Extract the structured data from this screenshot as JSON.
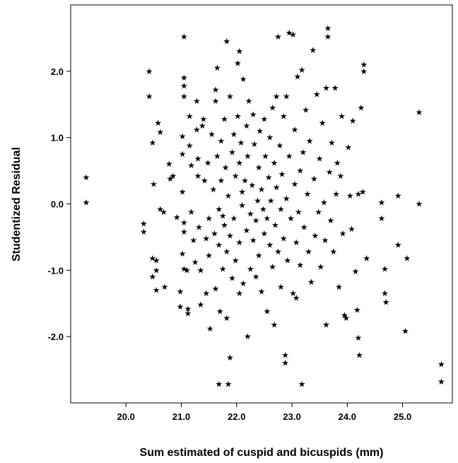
{
  "chart_data": {
    "type": "scatter",
    "xlabel": "Sum estimated of cuspid and bicuspids (mm)",
    "ylabel": "Studentized Residual",
    "xlim": [
      19.0,
      25.9
    ],
    "ylim": [
      -3.0,
      3.0
    ],
    "x_ticks": [
      "20.0",
      "21.0",
      "22.0",
      "23.0",
      "24.0",
      "25.0"
    ],
    "y_ticks": [
      "2.0",
      "1.0",
      "0.0",
      "-1.0",
      "-2.0"
    ],
    "marker": "star",
    "grid": false,
    "series": [
      {
        "points": [
          [
            19.28,
            0.4
          ],
          [
            19.28,
            0.02
          ],
          [
            20.32,
            -0.3
          ],
          [
            20.32,
            -0.42
          ],
          [
            20.42,
            2.0
          ],
          [
            20.42,
            1.62
          ],
          [
            20.48,
            0.92
          ],
          [
            20.5,
            0.3
          ],
          [
            20.48,
            -0.82
          ],
          [
            20.48,
            -1.1
          ],
          [
            20.55,
            -0.85
          ],
          [
            20.55,
            -1.0
          ],
          [
            20.55,
            -1.3
          ],
          [
            20.58,
            1.22
          ],
          [
            20.62,
            1.08
          ],
          [
            20.62,
            -0.08
          ],
          [
            20.68,
            -0.12
          ],
          [
            20.7,
            -1.25
          ],
          [
            20.78,
            0.6
          ],
          [
            20.8,
            0.38
          ],
          [
            20.85,
            0.42
          ],
          [
            20.92,
            -0.2
          ],
          [
            20.98,
            -1.32
          ],
          [
            20.98,
            -1.55
          ],
          [
            21.05,
            2.52
          ],
          [
            21.05,
            1.9
          ],
          [
            21.05,
            1.78
          ],
          [
            21.05,
            1.62
          ],
          [
            21.02,
            1.02
          ],
          [
            21.02,
            0.75
          ],
          [
            21.02,
            0.18
          ],
          [
            21.05,
            -0.28
          ],
          [
            21.05,
            -0.42
          ],
          [
            21.02,
            -0.75
          ],
          [
            21.05,
            -0.98
          ],
          [
            21.1,
            -1.0
          ],
          [
            21.12,
            -1.58
          ],
          [
            21.12,
            -1.65
          ],
          [
            21.15,
            1.32
          ],
          [
            21.15,
            0.88
          ],
          [
            21.18,
            0.58
          ],
          [
            21.18,
            -0.12
          ],
          [
            21.22,
            -0.55
          ],
          [
            21.25,
            -0.88
          ],
          [
            21.28,
            1.55
          ],
          [
            21.28,
            1.12
          ],
          [
            21.3,
            0.68
          ],
          [
            21.3,
            0.42
          ],
          [
            21.32,
            -0.35
          ],
          [
            21.35,
            -1.0
          ],
          [
            21.35,
            -1.52
          ],
          [
            21.38,
            1.18
          ],
          [
            21.4,
            1.28
          ],
          [
            21.42,
            0.35
          ],
          [
            21.45,
            -0.52
          ],
          [
            21.45,
            -1.35
          ],
          [
            21.48,
            0.62
          ],
          [
            21.5,
            -0.22
          ],
          [
            21.5,
            -0.78
          ],
          [
            21.52,
            -1.88
          ],
          [
            21.55,
            1.05
          ],
          [
            21.58,
            0.22
          ],
          [
            21.6,
            -0.45
          ],
          [
            21.62,
            1.72
          ],
          [
            21.62,
            1.55
          ],
          [
            21.62,
            -1.28
          ],
          [
            21.65,
            2.05
          ],
          [
            21.65,
            0.72
          ],
          [
            21.68,
            -0.08
          ],
          [
            21.68,
            -0.62
          ],
          [
            21.68,
            -2.72
          ],
          [
            21.7,
            -1.62
          ],
          [
            21.72,
            0.95
          ],
          [
            21.72,
            0.35
          ],
          [
            21.75,
            -0.18
          ],
          [
            21.75,
            -0.98
          ],
          [
            21.78,
            1.28
          ],
          [
            21.78,
            -0.32
          ],
          [
            21.8,
            0.55
          ],
          [
            21.82,
            2.45
          ],
          [
            21.82,
            -0.72
          ],
          [
            21.82,
            -1.72
          ],
          [
            21.85,
            0.12
          ],
          [
            21.85,
            -2.72
          ],
          [
            21.88,
            1.62
          ],
          [
            21.88,
            -0.48
          ],
          [
            21.88,
            -2.32
          ],
          [
            21.92,
            0.78
          ],
          [
            21.92,
            -1.12
          ],
          [
            21.95,
            1.05
          ],
          [
            21.95,
            -0.22
          ],
          [
            21.98,
            0.42
          ],
          [
            21.98,
            -0.85
          ],
          [
            22.02,
            2.12
          ],
          [
            22.02,
            1.32
          ],
          [
            22.05,
            2.3
          ],
          [
            22.05,
            0.62
          ],
          [
            22.05,
            -0.58
          ],
          [
            22.05,
            -1.35
          ],
          [
            22.08,
            0.92
          ],
          [
            22.1,
            0.18
          ],
          [
            22.1,
            -0.02
          ],
          [
            22.12,
            1.88
          ],
          [
            22.12,
            -1.2
          ],
          [
            22.15,
            0.35
          ],
          [
            22.18,
            1.18
          ],
          [
            22.18,
            -0.4
          ],
          [
            22.2,
            0.72
          ],
          [
            22.2,
            -2.0
          ],
          [
            22.22,
            1.55
          ],
          [
            22.25,
            -0.15
          ],
          [
            22.25,
            -0.98
          ],
          [
            22.28,
            0.28
          ],
          [
            22.3,
            1.35
          ],
          [
            22.3,
            -0.55
          ],
          [
            22.32,
            0.9
          ],
          [
            22.35,
            -1.1
          ],
          [
            22.35,
            -0.25
          ],
          [
            22.38,
            0.05
          ],
          [
            22.4,
            0.55
          ],
          [
            22.4,
            -0.78
          ],
          [
            22.42,
            1.1
          ],
          [
            22.45,
            0.22
          ],
          [
            22.45,
            -1.32
          ],
          [
            22.48,
            -0.08
          ],
          [
            22.5,
            1.28
          ],
          [
            22.5,
            -0.45
          ],
          [
            22.52,
            0.72
          ],
          [
            22.55,
            -0.22
          ],
          [
            22.55,
            -1.62
          ],
          [
            22.58,
            0.4
          ],
          [
            22.6,
            1.0
          ],
          [
            22.6,
            -0.62
          ],
          [
            22.62,
            0.05
          ],
          [
            22.65,
            1.45
          ],
          [
            22.65,
            -0.95
          ],
          [
            22.68,
            0.62
          ],
          [
            22.68,
            -1.82
          ],
          [
            22.7,
            -0.32
          ],
          [
            22.72,
            1.62
          ],
          [
            22.72,
            0.25
          ],
          [
            22.75,
            2.52
          ],
          [
            22.75,
            -0.72
          ],
          [
            22.78,
            0.88
          ],
          [
            22.8,
            -0.08
          ],
          [
            22.8,
            -1.25
          ],
          [
            22.82,
            0.45
          ],
          [
            22.85,
            1.32
          ],
          [
            22.85,
            -0.52
          ],
          [
            22.88,
            -2.28
          ],
          [
            22.88,
            -2.4
          ],
          [
            22.9,
            0.08
          ],
          [
            22.9,
            1.62
          ],
          [
            22.92,
            -0.85
          ],
          [
            22.95,
            2.58
          ],
          [
            22.95,
            0.72
          ],
          [
            22.98,
            -0.22
          ],
          [
            23.02,
            2.55
          ],
          [
            23.02,
            -1.35
          ],
          [
            23.05,
            1.12
          ],
          [
            23.05,
            0.3
          ],
          [
            23.08,
            -0.58
          ],
          [
            23.08,
            -1.42
          ],
          [
            23.1,
            1.92
          ],
          [
            23.12,
            -0.12
          ],
          [
            23.15,
            0.5
          ],
          [
            23.15,
            -0.92
          ],
          [
            23.18,
            2.02
          ],
          [
            23.18,
            -2.72
          ],
          [
            23.2,
            0.78
          ],
          [
            23.22,
            -0.35
          ],
          [
            23.25,
            1.42
          ],
          [
            23.28,
            0.15
          ],
          [
            23.3,
            -0.72
          ],
          [
            23.32,
            0.95
          ],
          [
            23.35,
            -1.18
          ],
          [
            23.38,
            2.32
          ],
          [
            23.4,
            0.38
          ],
          [
            23.42,
            -0.48
          ],
          [
            23.45,
            1.65
          ],
          [
            23.48,
            -0.12
          ],
          [
            23.5,
            0.68
          ],
          [
            23.52,
            -0.95
          ],
          [
            23.55,
            1.22
          ],
          [
            23.58,
            0.02
          ],
          [
            23.6,
            -0.55
          ],
          [
            23.62,
            1.75
          ],
          [
            23.62,
            -1.82
          ],
          [
            23.65,
            2.65
          ],
          [
            23.65,
            2.52
          ],
          [
            23.68,
            0.48
          ],
          [
            23.7,
            -0.25
          ],
          [
            23.72,
            0.92
          ],
          [
            23.75,
            -0.72
          ],
          [
            23.78,
            1.75
          ],
          [
            23.8,
            0.15
          ],
          [
            23.82,
            0.62
          ],
          [
            23.85,
            -1.25
          ],
          [
            23.88,
            0.42
          ],
          [
            23.9,
            1.32
          ],
          [
            23.92,
            -0.45
          ],
          [
            23.95,
            -1.68
          ],
          [
            23.98,
            -1.72
          ],
          [
            24.02,
            0.85
          ],
          [
            24.05,
            0.12
          ],
          [
            24.08,
            -0.38
          ],
          [
            24.1,
            1.25
          ],
          [
            24.15,
            -1.02
          ],
          [
            24.18,
            -1.6
          ],
          [
            24.2,
            0.15
          ],
          [
            24.2,
            -2.02
          ],
          [
            24.22,
            -2.28
          ],
          [
            24.25,
            1.45
          ],
          [
            24.28,
            0.18
          ],
          [
            24.3,
            2.1
          ],
          [
            24.3,
            2.0
          ],
          [
            24.35,
            -0.82
          ],
          [
            24.62,
            0.02
          ],
          [
            24.62,
            -0.22
          ],
          [
            24.68,
            -0.98
          ],
          [
            24.68,
            -1.35
          ],
          [
            24.7,
            -1.48
          ],
          [
            24.92,
            0.12
          ],
          [
            24.92,
            -0.62
          ],
          [
            25.08,
            -0.82
          ],
          [
            25.05,
            -1.92
          ],
          [
            25.3,
            1.38
          ],
          [
            25.3,
            0.0
          ],
          [
            25.7,
            -2.42
          ],
          [
            25.7,
            -2.68
          ]
        ]
      }
    ]
  }
}
